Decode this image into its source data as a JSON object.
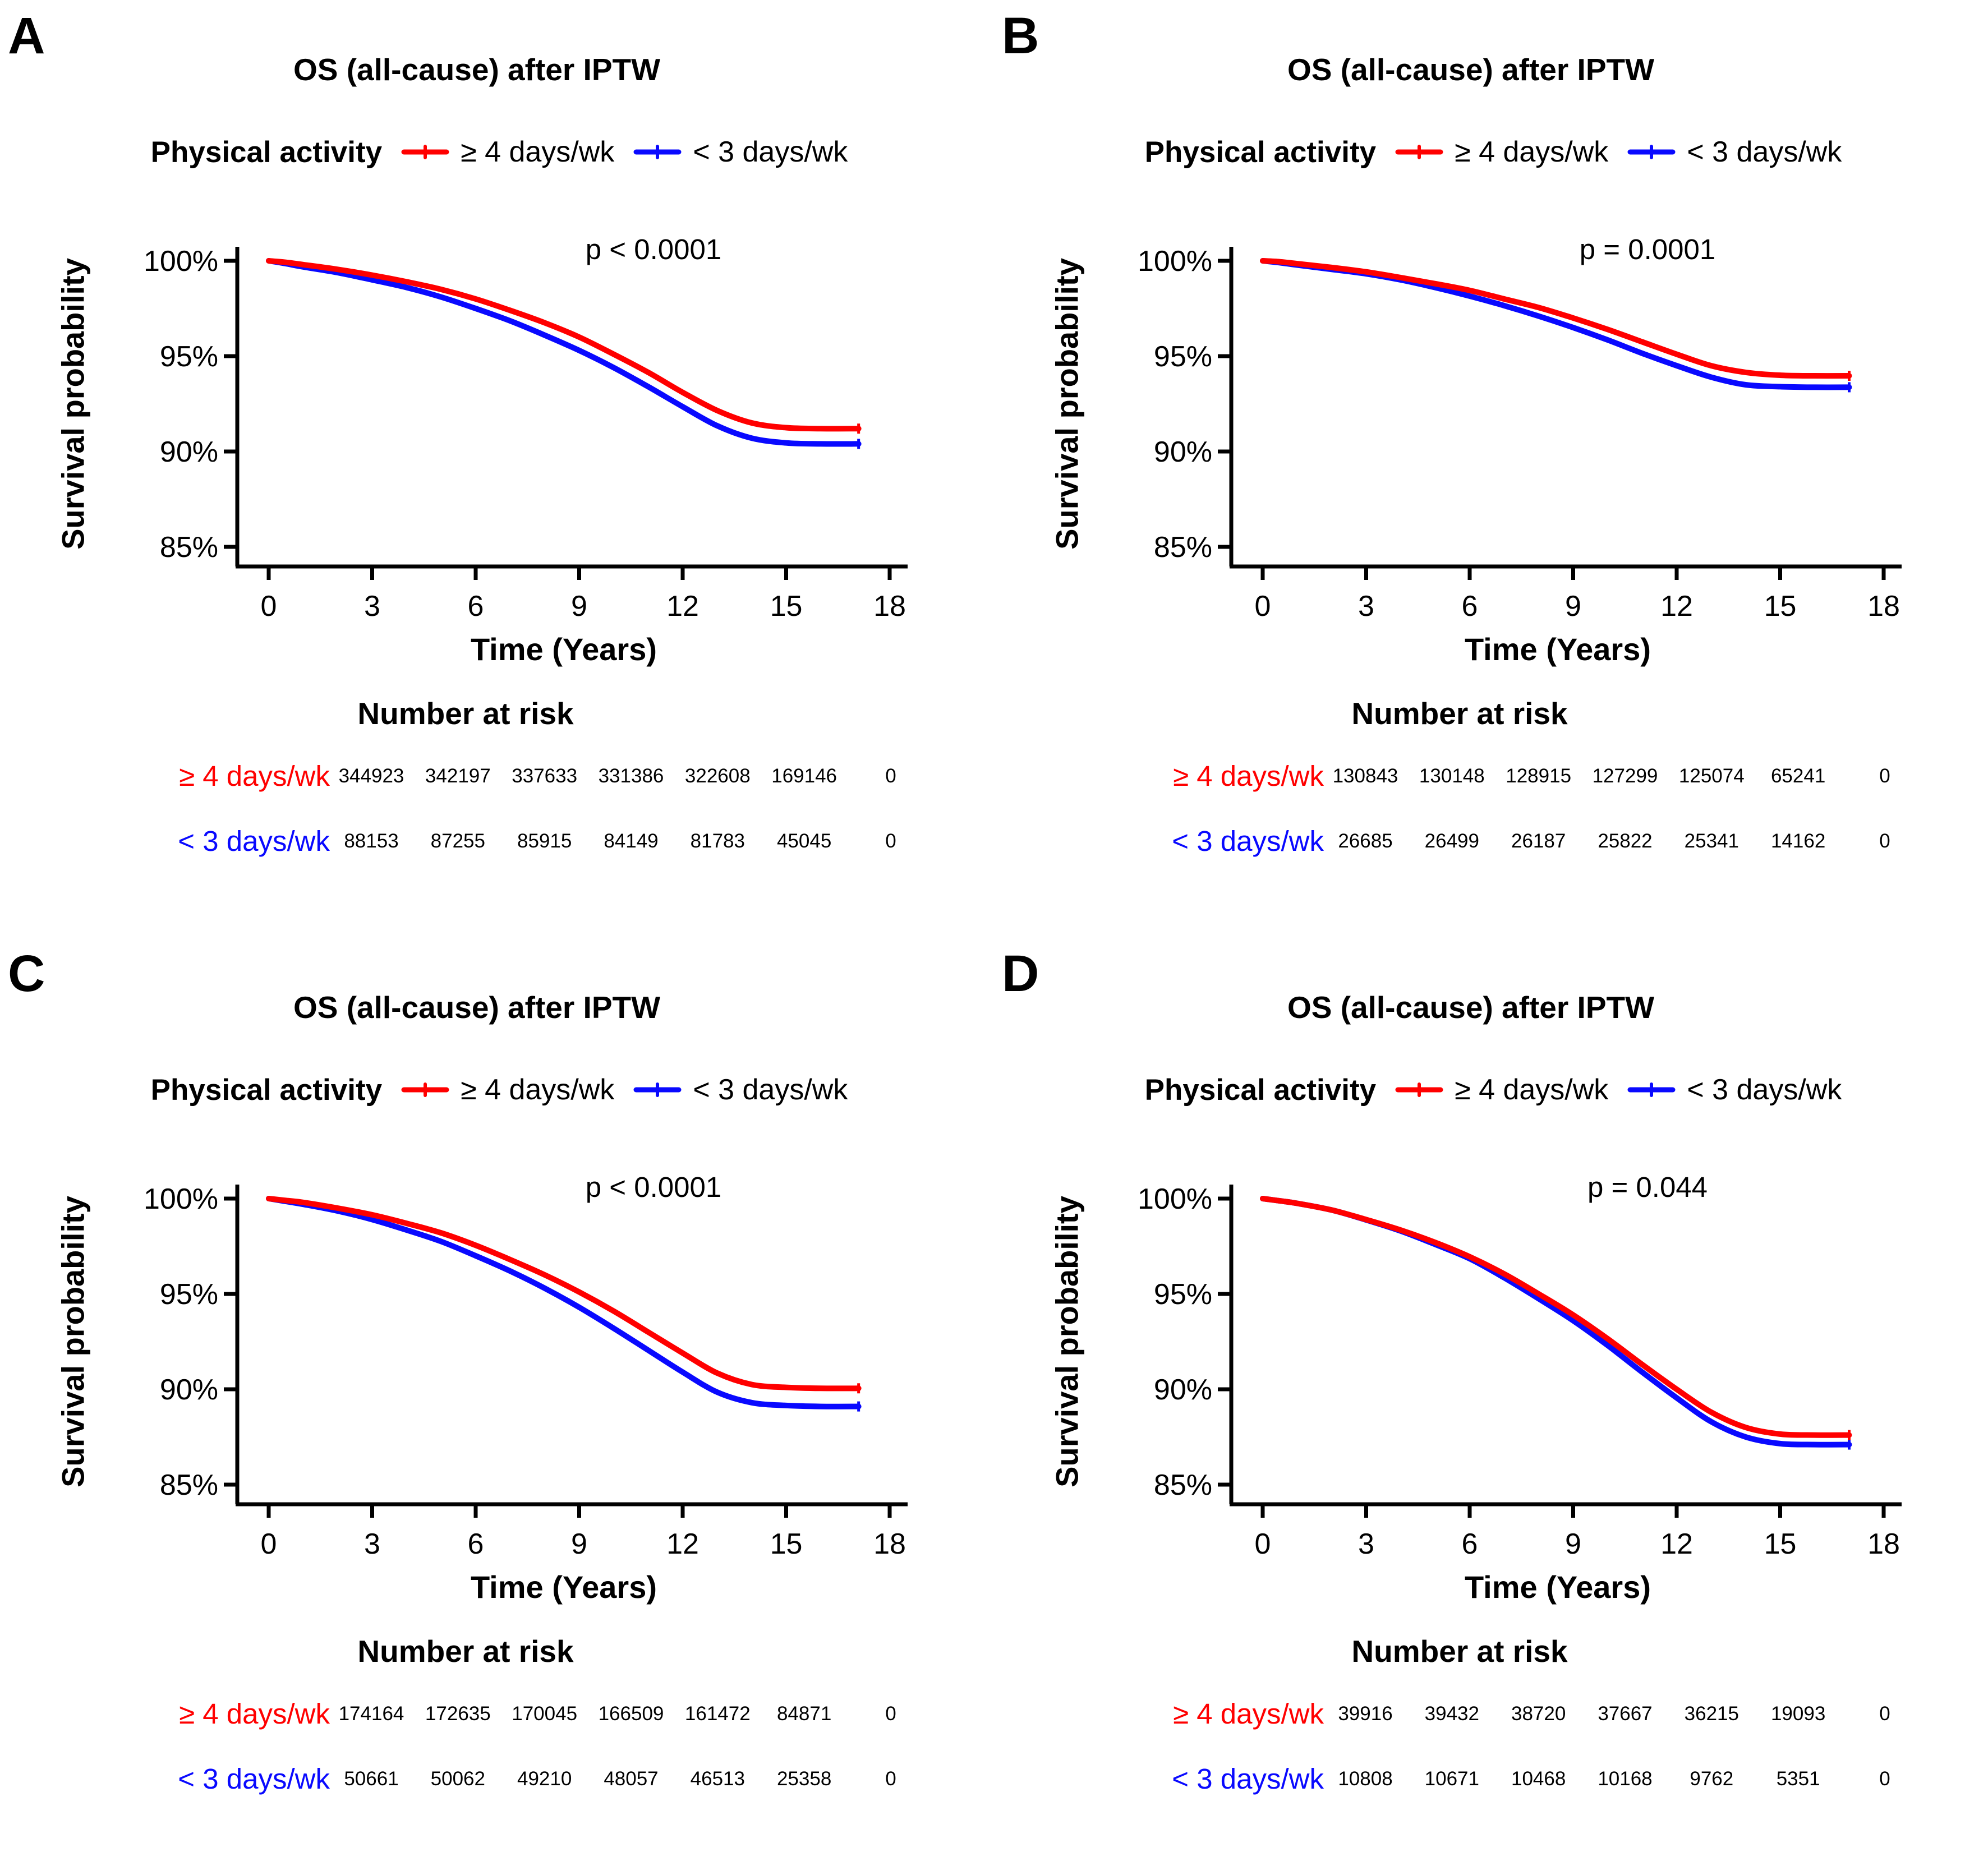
{
  "figure_background": "#ffffff",
  "chart_data": [
    {
      "panel": "A",
      "type": "line",
      "title": "OS (all-cause) after IPTW",
      "legend_title": "Physical activity",
      "p_value_text": "p < 0.0001",
      "xlabel": "Time (Years)",
      "ylabel": "Survival probability",
      "x_ticks": [
        0,
        3,
        6,
        9,
        12,
        15,
        18
      ],
      "y_ticks": [
        "100%",
        "95%",
        "90%",
        "85%"
      ],
      "xlim": [
        -0.9,
        18.3
      ],
      "ylim": [
        84,
        100.5
      ],
      "grid": false,
      "legend_position": "top",
      "series": [
        {
          "name": "≥ 4 days/wk",
          "color": "#FF0000",
          "points": [
            [
              0,
              100
            ],
            [
              0.5,
              99.92
            ],
            [
              1,
              99.8
            ],
            [
              2,
              99.55
            ],
            [
              3,
              99.25
            ],
            [
              4,
              98.9
            ],
            [
              5,
              98.5
            ],
            [
              6,
              98.0
            ],
            [
              7,
              97.4
            ],
            [
              8,
              96.75
            ],
            [
              9,
              96.0
            ],
            [
              10,
              95.1
            ],
            [
              11,
              94.15
            ],
            [
              12,
              93.1
            ],
            [
              13,
              92.15
            ],
            [
              14,
              91.5
            ],
            [
              15,
              91.25
            ],
            [
              16,
              91.2
            ],
            [
              17.1,
              91.2
            ]
          ]
        },
        {
          "name": "< 3 days/wk",
          "color": "#0909FF",
          "points": [
            [
              0,
              100
            ],
            [
              0.5,
              99.85
            ],
            [
              1,
              99.68
            ],
            [
              2,
              99.38
            ],
            [
              3,
              99.0
            ],
            [
              4,
              98.6
            ],
            [
              5,
              98.1
            ],
            [
              6,
              97.5
            ],
            [
              7,
              96.85
            ],
            [
              8,
              96.1
            ],
            [
              9,
              95.3
            ],
            [
              10,
              94.4
            ],
            [
              11,
              93.4
            ],
            [
              12,
              92.35
            ],
            [
              13,
              91.35
            ],
            [
              14,
              90.7
            ],
            [
              15,
              90.45
            ],
            [
              16,
              90.4
            ],
            [
              17.1,
              90.4
            ]
          ]
        }
      ],
      "risk_table": {
        "title": "Number at risk",
        "rows": [
          {
            "label": "≥ 4 days/wk",
            "color": "#FF0000",
            "values": [
              "344923",
              "342197",
              "337633",
              "331386",
              "322608",
              "169146",
              "0"
            ]
          },
          {
            "label": "< 3 days/wk",
            "color": "#0909FF",
            "values": [
              "88153",
              "87255",
              "85915",
              "84149",
              "81783",
              "45045",
              "0"
            ]
          }
        ]
      }
    },
    {
      "panel": "B",
      "type": "line",
      "title": "OS (all-cause) after IPTW",
      "legend_title": "Physical activity",
      "p_value_text": "p = 0.0001",
      "xlabel": "Time (Years)",
      "ylabel": "Survival probability",
      "x_ticks": [
        0,
        3,
        6,
        9,
        12,
        15,
        18
      ],
      "y_ticks": [
        "100%",
        "95%",
        "90%",
        "85%"
      ],
      "xlim": [
        -0.9,
        18.3
      ],
      "ylim": [
        84,
        100.5
      ],
      "grid": false,
      "legend_position": "top",
      "series": [
        {
          "name": "≥ 4 days/wk",
          "color": "#FF0000",
          "points": [
            [
              0,
              100
            ],
            [
              0.5,
              99.95
            ],
            [
              1,
              99.85
            ],
            [
              2,
              99.65
            ],
            [
              3,
              99.42
            ],
            [
              4,
              99.12
            ],
            [
              5,
              98.8
            ],
            [
              6,
              98.45
            ],
            [
              7,
              98.0
            ],
            [
              8,
              97.55
            ],
            [
              9,
              97.0
            ],
            [
              10,
              96.4
            ],
            [
              11,
              95.75
            ],
            [
              12,
              95.1
            ],
            [
              13,
              94.5
            ],
            [
              14,
              94.15
            ],
            [
              15,
              94.0
            ],
            [
              16,
              93.97
            ],
            [
              17,
              93.97
            ]
          ]
        },
        {
          "name": "< 3 days/wk",
          "color": "#0909FF",
          "points": [
            [
              0,
              100
            ],
            [
              0.5,
              99.9
            ],
            [
              1,
              99.78
            ],
            [
              2,
              99.55
            ],
            [
              3,
              99.32
            ],
            [
              4,
              99.0
            ],
            [
              5,
              98.6
            ],
            [
              6,
              98.15
            ],
            [
              7,
              97.65
            ],
            [
              8,
              97.1
            ],
            [
              9,
              96.5
            ],
            [
              10,
              95.85
            ],
            [
              11,
              95.15
            ],
            [
              12,
              94.5
            ],
            [
              13,
              93.9
            ],
            [
              14,
              93.5
            ],
            [
              15,
              93.4
            ],
            [
              16,
              93.37
            ],
            [
              17,
              93.37
            ]
          ]
        }
      ],
      "risk_table": {
        "title": "Number at risk",
        "rows": [
          {
            "label": "≥ 4 days/wk",
            "color": "#FF0000",
            "values": [
              "130843",
              "130148",
              "128915",
              "127299",
              "125074",
              "65241",
              "0"
            ]
          },
          {
            "label": "< 3 days/wk",
            "color": "#0909FF",
            "values": [
              "26685",
              "26499",
              "26187",
              "25822",
              "25341",
              "14162",
              "0"
            ]
          }
        ]
      }
    },
    {
      "panel": "C",
      "type": "line",
      "title": "OS (all-cause) after IPTW",
      "legend_title": "Physical activity",
      "p_value_text": "p < 0.0001",
      "xlabel": "Time (Years)",
      "ylabel": "Survival probability",
      "x_ticks": [
        0,
        3,
        6,
        9,
        12,
        15,
        18
      ],
      "y_ticks": [
        "100%",
        "95%",
        "90%",
        "85%"
      ],
      "xlim": [
        -0.9,
        18.3
      ],
      "ylim": [
        84,
        100.5
      ],
      "grid": false,
      "legend_position": "top",
      "series": [
        {
          "name": "≥ 4 days/wk",
          "color": "#FF0000",
          "points": [
            [
              0,
              100
            ],
            [
              0.5,
              99.9
            ],
            [
              1,
              99.8
            ],
            [
              2,
              99.5
            ],
            [
              3,
              99.15
            ],
            [
              4,
              98.7
            ],
            [
              5,
              98.2
            ],
            [
              6,
              97.55
            ],
            [
              7,
              96.8
            ],
            [
              8,
              96.0
            ],
            [
              9,
              95.1
            ],
            [
              10,
              94.1
            ],
            [
              11,
              93.0
            ],
            [
              12,
              91.9
            ],
            [
              13,
              90.85
            ],
            [
              14,
              90.25
            ],
            [
              15,
              90.1
            ],
            [
              16,
              90.05
            ],
            [
              17.1,
              90.05
            ]
          ]
        },
        {
          "name": "< 3 days/wk",
          "color": "#0909FF",
          "points": [
            [
              0,
              100
            ],
            [
              0.5,
              99.85
            ],
            [
              1,
              99.7
            ],
            [
              2,
              99.35
            ],
            [
              3,
              98.9
            ],
            [
              4,
              98.35
            ],
            [
              5,
              97.75
            ],
            [
              6,
              97.0
            ],
            [
              7,
              96.2
            ],
            [
              8,
              95.3
            ],
            [
              9,
              94.3
            ],
            [
              10,
              93.2
            ],
            [
              11,
              92.05
            ],
            [
              12,
              90.9
            ],
            [
              13,
              89.85
            ],
            [
              14,
              89.3
            ],
            [
              15,
              89.15
            ],
            [
              16,
              89.1
            ],
            [
              17.1,
              89.1
            ]
          ]
        }
      ],
      "risk_table": {
        "title": "Number at risk",
        "rows": [
          {
            "label": "≥ 4 days/wk",
            "color": "#FF0000",
            "values": [
              "174164",
              "172635",
              "170045",
              "166509",
              "161472",
              "84871",
              "0"
            ]
          },
          {
            "label": "< 3 days/wk",
            "color": "#0909FF",
            "values": [
              "50661",
              "50062",
              "49210",
              "48057",
              "46513",
              "25358",
              "0"
            ]
          }
        ]
      }
    },
    {
      "panel": "D",
      "type": "line",
      "title": "OS (all-cause) after IPTW",
      "legend_title": "Physical activity",
      "p_value_text": "p = 0.044",
      "xlabel": "Time (Years)",
      "ylabel": "Survival probability",
      "x_ticks": [
        0,
        3,
        6,
        9,
        12,
        15,
        18
      ],
      "y_ticks": [
        "100%",
        "95%",
        "90%",
        "85%"
      ],
      "xlim": [
        -0.9,
        18.3
      ],
      "ylim": [
        84,
        100.5
      ],
      "grid": false,
      "legend_position": "top",
      "series": [
        {
          "name": "≥ 4 days/wk",
          "color": "#FF0000",
          "points": [
            [
              0,
              100
            ],
            [
              0.5,
              99.88
            ],
            [
              1,
              99.75
            ],
            [
              2,
              99.4
            ],
            [
              3,
              98.9
            ],
            [
              4,
              98.35
            ],
            [
              5,
              97.7
            ],
            [
              6,
              96.95
            ],
            [
              7,
              96.05
            ],
            [
              8,
              95.0
            ],
            [
              9,
              93.9
            ],
            [
              10,
              92.65
            ],
            [
              11,
              91.3
            ],
            [
              12,
              90.0
            ],
            [
              13,
              88.8
            ],
            [
              14,
              88.0
            ],
            [
              15,
              87.65
            ],
            [
              16,
              87.6
            ],
            [
              17,
              87.6
            ]
          ]
        },
        {
          "name": "< 3 days/wk",
          "color": "#0909FF",
          "points": [
            [
              0,
              100
            ],
            [
              0.5,
              99.88
            ],
            [
              1,
              99.75
            ],
            [
              2,
              99.4
            ],
            [
              3,
              98.88
            ],
            [
              4,
              98.3
            ],
            [
              5,
              97.6
            ],
            [
              6,
              96.85
            ],
            [
              7,
              95.85
            ],
            [
              8,
              94.75
            ],
            [
              9,
              93.6
            ],
            [
              10,
              92.3
            ],
            [
              11,
              90.9
            ],
            [
              12,
              89.55
            ],
            [
              13,
              88.3
            ],
            [
              14,
              87.5
            ],
            [
              15,
              87.15
            ],
            [
              16,
              87.1
            ],
            [
              17,
              87.1
            ]
          ]
        }
      ],
      "risk_table": {
        "title": "Number at risk",
        "rows": [
          {
            "label": "≥ 4 days/wk",
            "color": "#FF0000",
            "values": [
              "39916",
              "39432",
              "38720",
              "37667",
              "36215",
              "19093",
              "0"
            ]
          },
          {
            "label": "< 3 days/wk",
            "color": "#0909FF",
            "values": [
              "10808",
              "10671",
              "10468",
              "10168",
              "9762",
              "5351",
              "0"
            ]
          }
        ]
      }
    }
  ]
}
